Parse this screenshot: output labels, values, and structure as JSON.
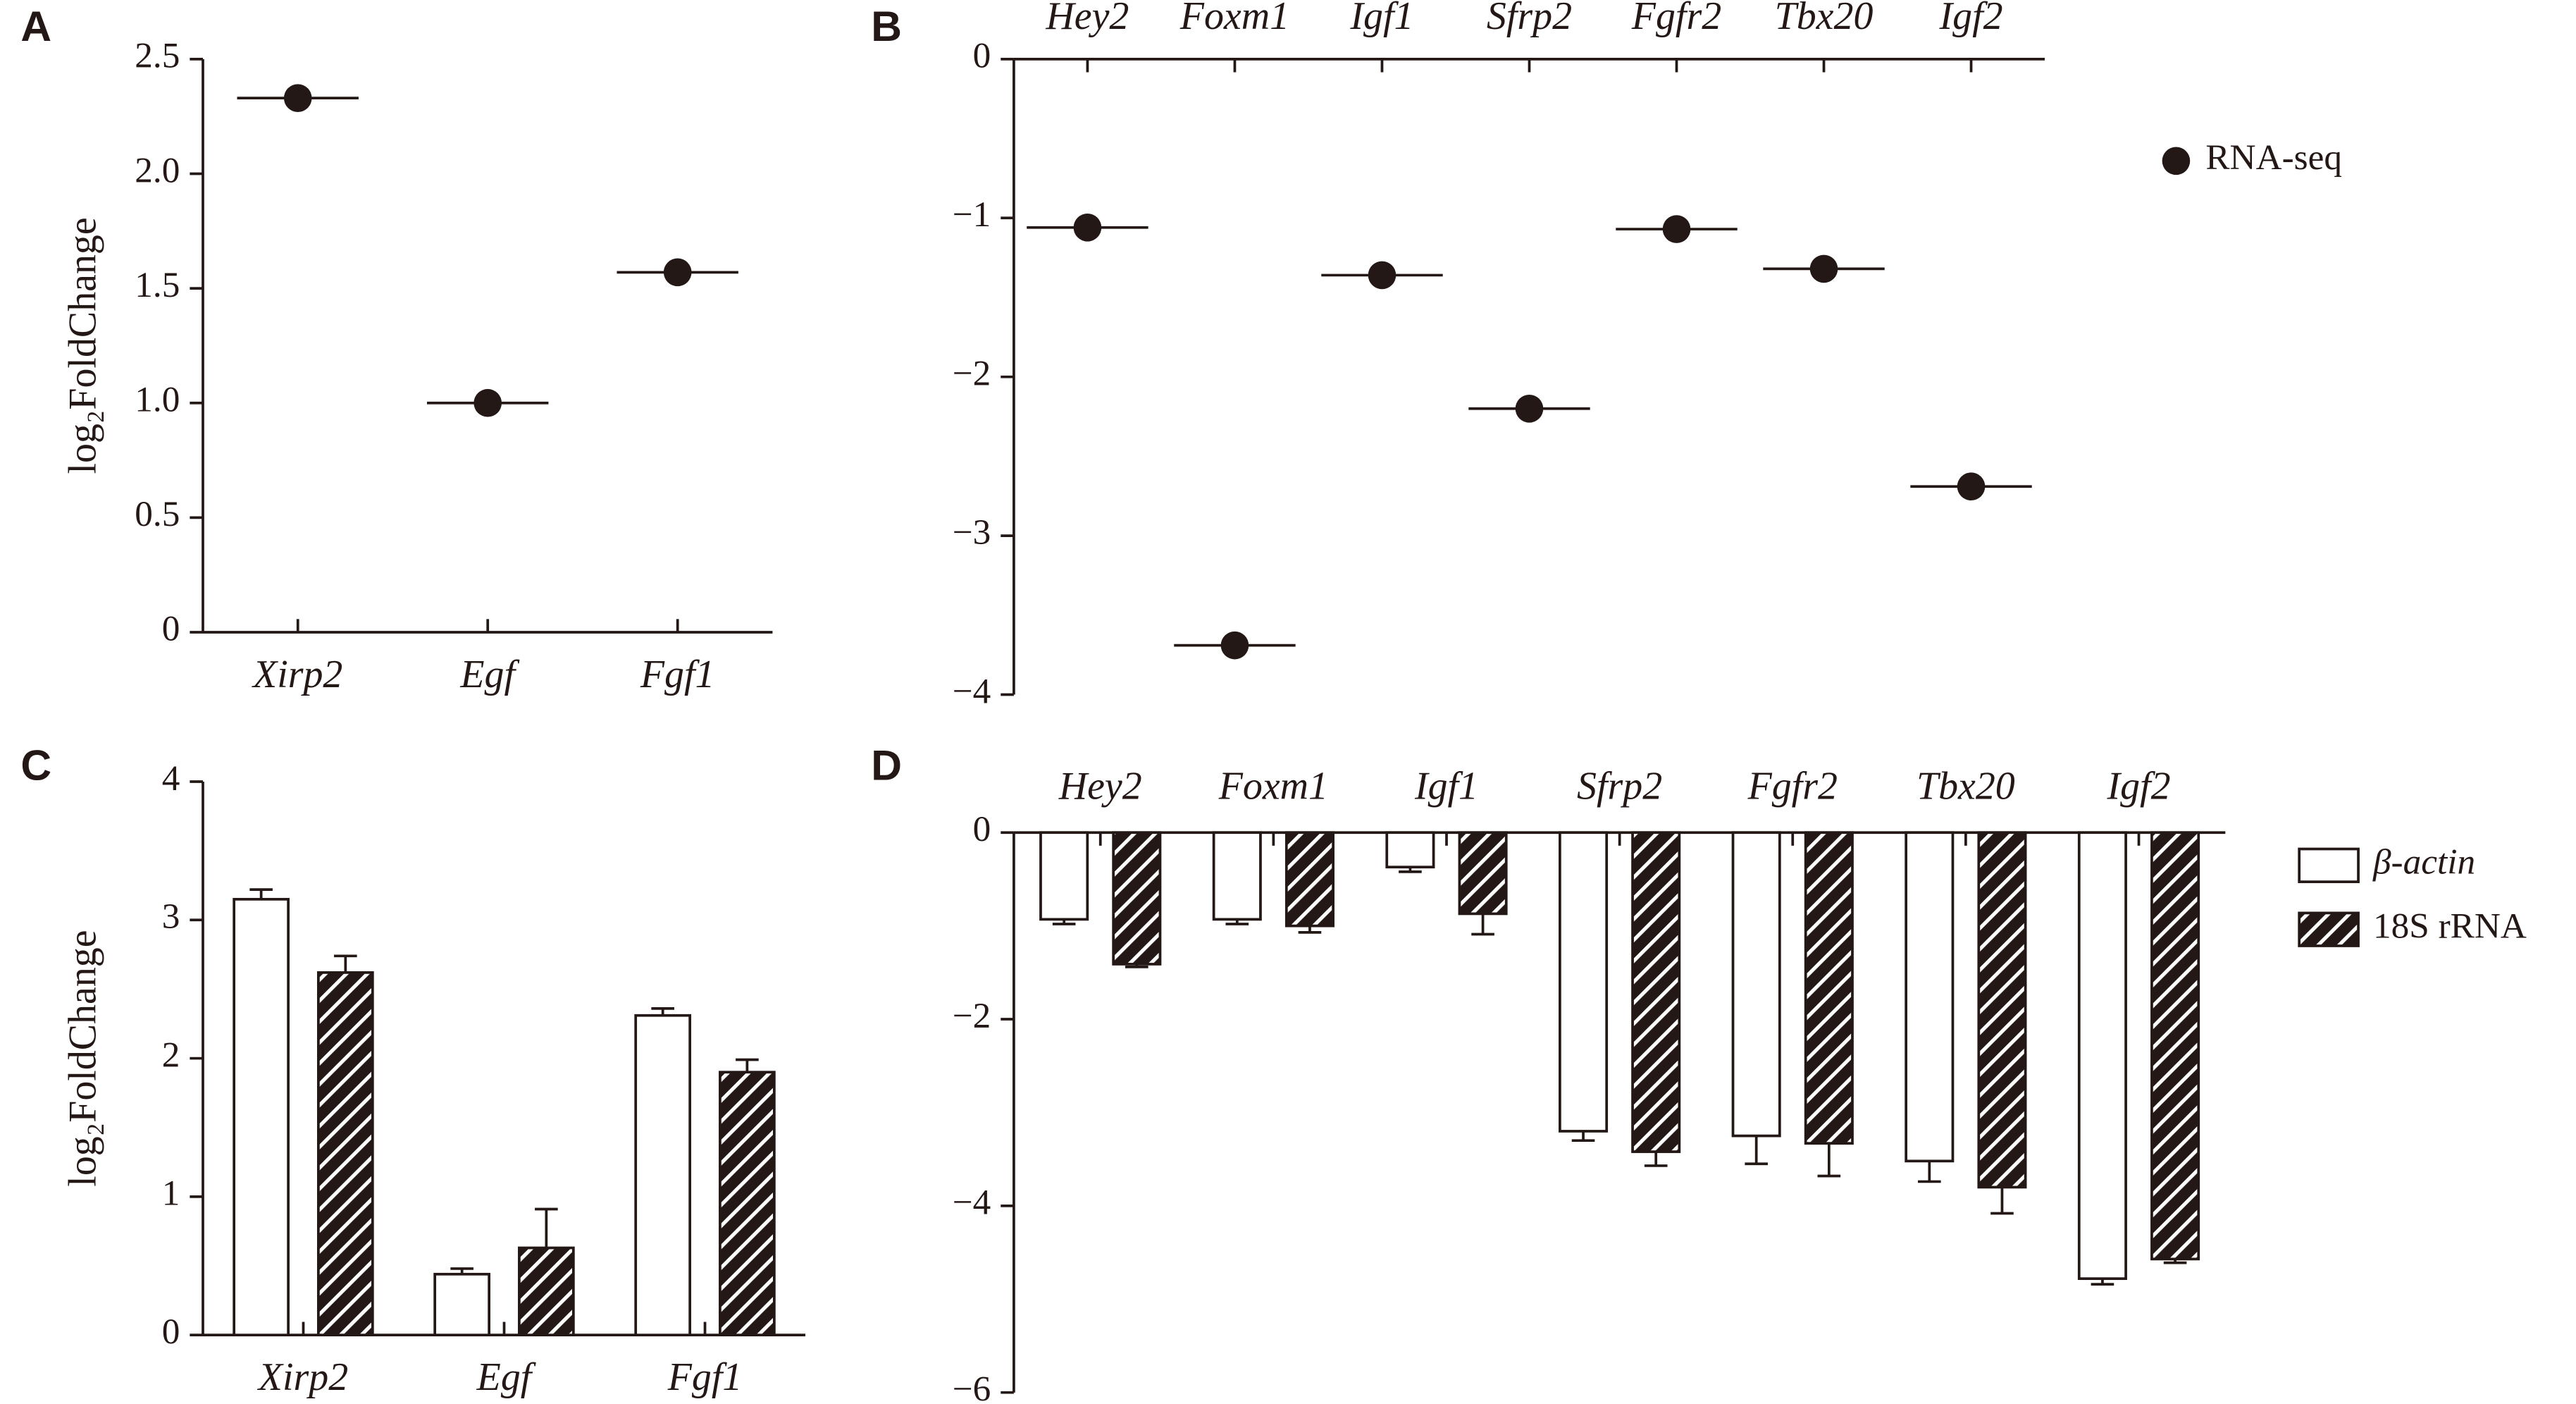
{
  "chart_data": [
    {
      "type": "dot",
      "label": "A",
      "ylabel": "log₂FoldChange",
      "categories": [
        "Xirp2",
        "Egf",
        "Fgf1"
      ],
      "series": [
        {
          "color": "#231815",
          "values": [
            2.33,
            1.0,
            1.57
          ]
        }
      ],
      "ylim": [
        0,
        2.5
      ],
      "yticks": [
        0,
        0.5,
        {
          "value": 1,
          "label": "1.0"
        },
        1.5,
        {
          "value": 2,
          "label": "2.0"
        },
        2.5
      ]
    },
    {
      "type": "dot",
      "label": "B",
      "categories": [
        "Hey2",
        "Foxm1",
        "Igf1",
        "Sfrp2",
        "Fgfr2",
        "Tbx20",
        "Igf2"
      ],
      "series": [
        {
          "name": "RNA-seq",
          "color": "#231815",
          "values": [
            -1.06,
            -3.69,
            -1.36,
            -2.2,
            -1.07,
            -1.32,
            -2.69
          ]
        }
      ],
      "ylim": [
        -4,
        0
      ],
      "yticks": [
        0,
        {
          "value": -1,
          "label": "−1"
        },
        {
          "value": -2,
          "label": "−2"
        },
        {
          "value": -3,
          "label": "−3"
        },
        {
          "value": -4,
          "label": "−4"
        }
      ],
      "legend": "right"
    },
    {
      "type": "bar",
      "label": "C",
      "ylabel": "log₂FoldChange",
      "categories": [
        "Xirp2",
        "Egf",
        "Fgf1"
      ],
      "series": [
        {
          "color": "#ffffff",
          "values": [
            3.15,
            0.44,
            2.31
          ],
          "errors": [
            0.07,
            0.04,
            0.05
          ]
        },
        {
          "color": "#231815",
          "hatch": true,
          "values": [
            2.62,
            0.63,
            1.9
          ],
          "errors": [
            0.12,
            0.28,
            0.09
          ]
        }
      ],
      "ylim": [
        0,
        4
      ],
      "yticks": [
        0,
        1,
        2,
        3,
        4
      ]
    },
    {
      "type": "bar",
      "label": "D",
      "categories": [
        "Hey2",
        "Foxm1",
        "Igf1",
        "Sfrp2",
        "Fgfr2",
        "Tbx20",
        "Igf2"
      ],
      "series": [
        {
          "name": "β-actin",
          "color": "#ffffff",
          "values": [
            -0.93,
            -0.93,
            -0.37,
            -3.2,
            -3.25,
            -3.52,
            -4.78
          ],
          "errors": [
            0.05,
            0.05,
            0.05,
            0.1,
            0.3,
            0.22,
            0.06
          ]
        },
        {
          "name": "18S rRNA",
          "color": "#231815",
          "hatch": true,
          "values": [
            -1.41,
            -1.0,
            -0.87,
            -3.42,
            -3.33,
            -3.8,
            -4.57
          ],
          "errors": [
            0.03,
            0.07,
            0.22,
            0.15,
            0.35,
            0.28,
            0.04
          ]
        }
      ],
      "ylim": [
        -6,
        0
      ],
      "yticks": [
        0,
        {
          "value": -2,
          "label": "−2"
        },
        {
          "value": -4,
          "label": "−4"
        },
        {
          "value": -6,
          "label": "−6"
        }
      ],
      "legend": "right"
    }
  ]
}
